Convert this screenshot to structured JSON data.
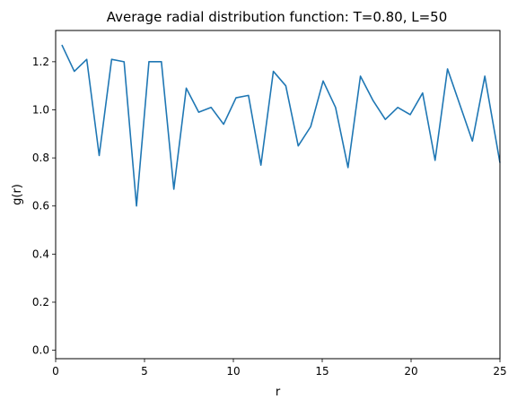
{
  "chart_data": {
    "type": "line",
    "title": "Average radial distribution function: T=0.80, L=50",
    "xlabel": "r",
    "ylabel": "g(r)",
    "xlim": [
      0,
      25
    ],
    "ylim": [
      -0.035,
      1.33
    ],
    "grid": false,
    "legend": "none",
    "xticks": [
      0,
      5,
      10,
      15,
      20,
      25
    ],
    "xtick_labels": [
      "0",
      "5",
      "10",
      "15",
      "20",
      "25"
    ],
    "yticks": [
      0.0,
      0.2,
      0.4,
      0.6,
      0.8,
      1.0,
      1.2
    ],
    "ytick_labels": [
      "0.0",
      "0.2",
      "0.4",
      "0.6",
      "0.8",
      "1.0",
      "1.2"
    ],
    "series": [
      {
        "color": "#1f77b4",
        "x": [
          0.35,
          1.05,
          1.75,
          2.45,
          3.15,
          3.85,
          4.55,
          5.25,
          5.95,
          6.65,
          7.35,
          8.05,
          8.75,
          9.45,
          10.15,
          10.85,
          11.55,
          12.25,
          12.95,
          13.65,
          14.35,
          15.05,
          15.75,
          16.45,
          17.15,
          17.85,
          18.55,
          19.25,
          19.95,
          20.65,
          21.35,
          22.05,
          22.75,
          23.45,
          24.15,
          25.0
        ],
        "y": [
          1.27,
          1.16,
          1.21,
          0.81,
          1.21,
          1.2,
          0.6,
          1.2,
          1.2,
          0.67,
          1.09,
          0.99,
          1.01,
          0.94,
          1.05,
          1.06,
          0.77,
          1.16,
          1.1,
          0.85,
          0.93,
          1.12,
          1.01,
          0.76,
          1.14,
          1.04,
          0.96,
          1.01,
          0.98,
          1.07,
          0.79,
          1.17,
          1.02,
          0.87,
          1.14,
          0.78
        ]
      }
    ]
  }
}
